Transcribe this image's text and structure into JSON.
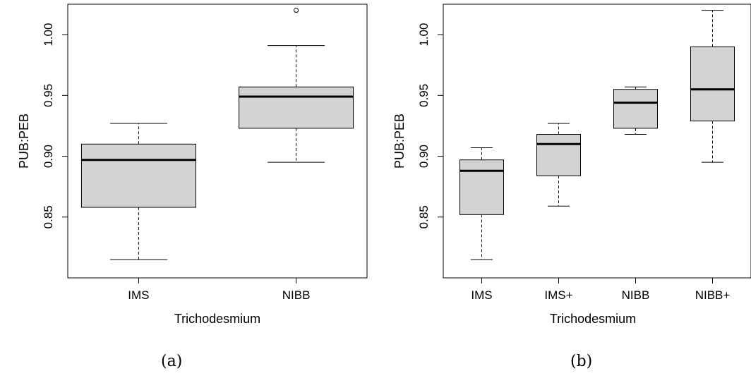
{
  "chart_data": [
    {
      "type": "boxplot",
      "caption": "(a)",
      "xlabel": "Trichodesmium",
      "ylabel": "PUB:PEB",
      "ylim": [
        0.8,
        1.025
      ],
      "yticks": [
        "0.85",
        "0.90",
        "0.95",
        "1.00"
      ],
      "ytick_values": [
        0.85,
        0.9,
        0.95,
        1.0
      ],
      "categories": [
        "IMS",
        "NIBB"
      ],
      "boxes": [
        {
          "category": "IMS",
          "whisker_low": 0.815,
          "q1": 0.858,
          "median": 0.897,
          "q3": 0.91,
          "whisker_high": 0.927,
          "outliers": []
        },
        {
          "category": "NIBB",
          "whisker_low": 0.895,
          "q1": 0.923,
          "median": 0.949,
          "q3": 0.957,
          "whisker_high": 0.991,
          "outliers": [
            1.02
          ]
        }
      ],
      "box_color": "#d3d3d3"
    },
    {
      "type": "boxplot",
      "caption": "(b)",
      "xlabel": "Trichodesmium",
      "ylabel": "PUB:PEB",
      "ylim": [
        0.8,
        1.025
      ],
      "yticks": [
        "0.85",
        "0.90",
        "0.95",
        "1.00"
      ],
      "ytick_values": [
        0.85,
        0.9,
        0.95,
        1.0
      ],
      "categories": [
        "IMS",
        "IMS+",
        "NIBB",
        "NIBB+"
      ],
      "boxes": [
        {
          "category": "IMS",
          "whisker_low": 0.815,
          "q1": 0.852,
          "median": 0.888,
          "q3": 0.897,
          "whisker_high": 0.907,
          "outliers": []
        },
        {
          "category": "IMS+",
          "whisker_low": 0.859,
          "q1": 0.884,
          "median": 0.91,
          "q3": 0.918,
          "whisker_high": 0.927,
          "outliers": []
        },
        {
          "category": "NIBB",
          "whisker_low": 0.918,
          "q1": 0.923,
          "median": 0.944,
          "q3": 0.955,
          "whisker_high": 0.957,
          "outliers": []
        },
        {
          "category": "NIBB+",
          "whisker_low": 0.895,
          "q1": 0.929,
          "median": 0.955,
          "q3": 0.99,
          "whisker_high": 1.02,
          "outliers": []
        }
      ],
      "box_color": "#d3d3d3"
    }
  ]
}
